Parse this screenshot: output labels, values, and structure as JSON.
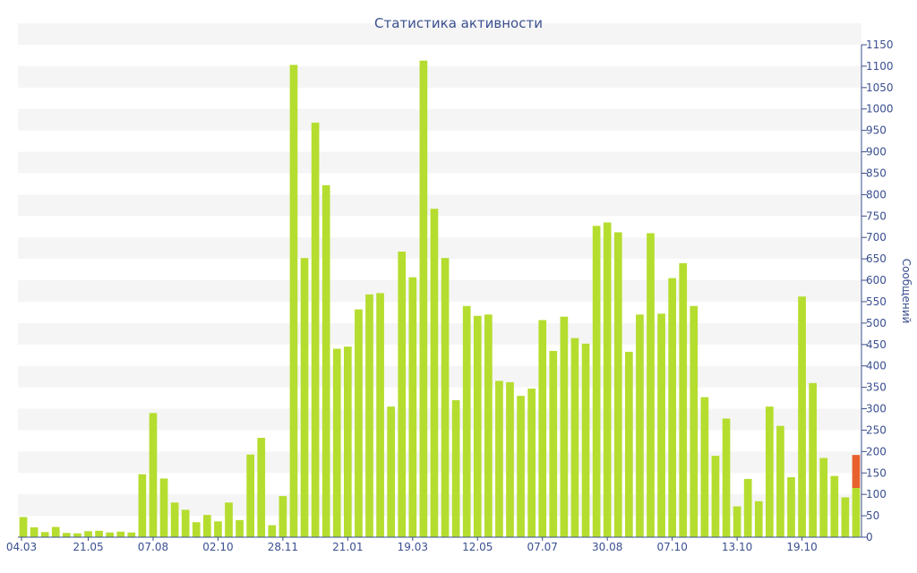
{
  "chart_data": {
    "type": "bar",
    "title": "Статистика активности",
    "ylabel": "Сообщений",
    "ylim": [
      0,
      1150
    ],
    "ytick_step": 50,
    "grid": "horizontal-bands",
    "colors": {
      "bar": "#b5dd2f",
      "highlight": "#e8612c",
      "band": "#f5f5f5",
      "text": "#3a4f8f"
    },
    "x_tick_labels": [
      "04.03",
      "21.05",
      "07.08",
      "02.10",
      "28.11",
      "21.01",
      "19.03",
      "12.05",
      "07.07",
      "30.08",
      "07.10",
      "13.10",
      "19.10"
    ],
    "x_tick_label_bar_index": [
      0,
      6,
      12,
      18,
      24,
      30,
      36,
      42,
      48,
      54,
      60,
      66,
      72
    ],
    "values": [
      47,
      23,
      12,
      24,
      10,
      9,
      14,
      15,
      11,
      13,
      11,
      147,
      290,
      137,
      81,
      64,
      35,
      52,
      37,
      81,
      40,
      193,
      232,
      28,
      96,
      1103,
      652,
      968,
      822,
      440,
      445,
      532,
      567,
      570,
      305,
      667,
      607,
      1113,
      767,
      652,
      320,
      540,
      517,
      520,
      365,
      362,
      330,
      347,
      507,
      435,
      515,
      465,
      452,
      727,
      735,
      712,
      433,
      520,
      710,
      522,
      605,
      640,
      540,
      327,
      190,
      277,
      72,
      136,
      84,
      305,
      260,
      140,
      562,
      360,
      185,
      143,
      93,
      115
    ],
    "highlight": {
      "index": 77,
      "from": 115,
      "to": 192
    }
  }
}
